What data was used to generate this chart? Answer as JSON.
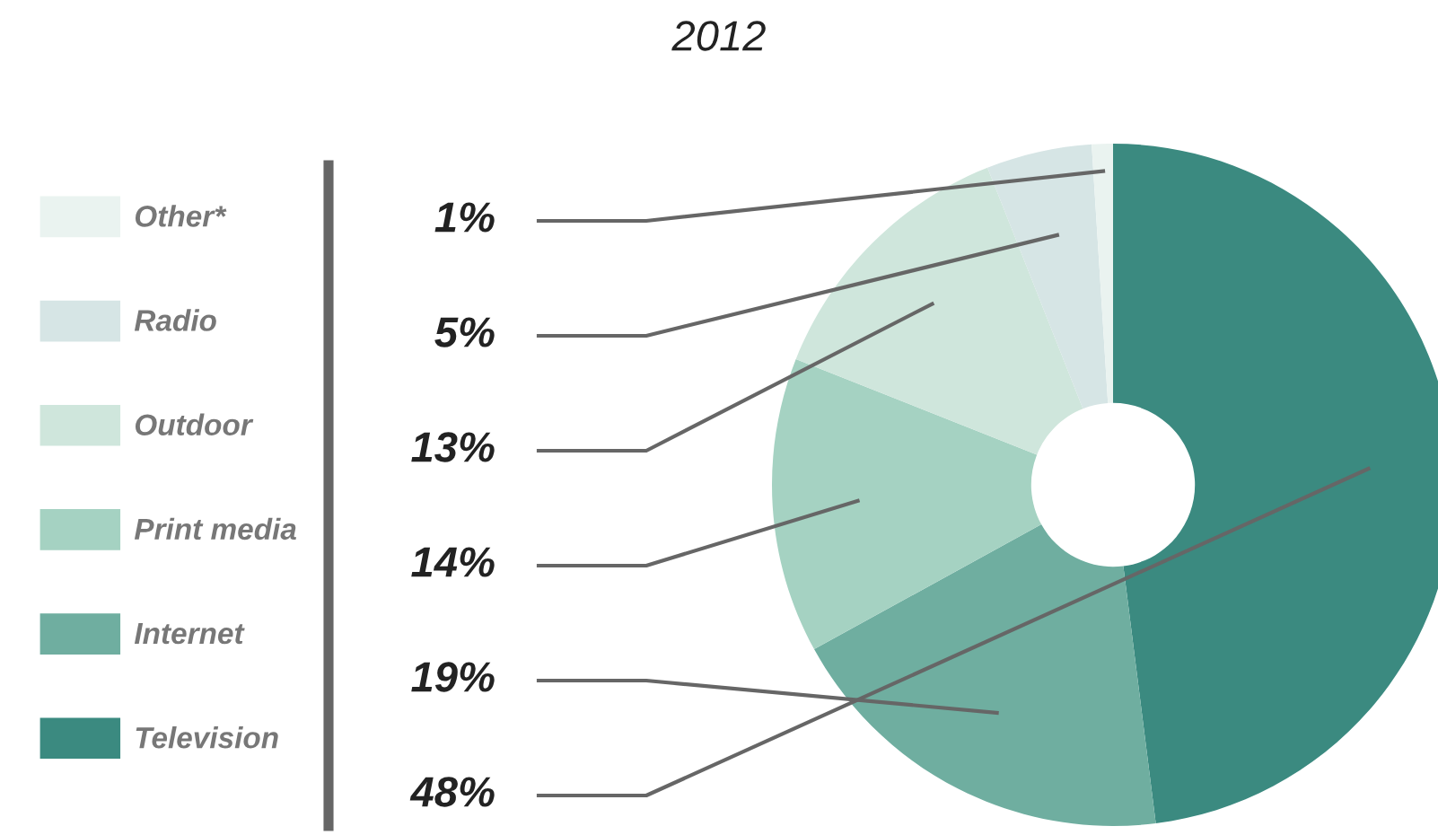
{
  "chart_data": {
    "type": "donut",
    "title": "2012",
    "categories": [
      "Television",
      "Internet",
      "Print media",
      "Outdoor",
      "Radio",
      "Other*"
    ],
    "values": [
      48,
      19,
      14,
      13,
      5,
      1
    ],
    "colors": [
      "#3b8a80",
      "#6faea0",
      "#a5d2c2",
      "#cfe6dc",
      "#d6e5e5",
      "#eaf3f0"
    ],
    "value_labels": [
      "48%",
      "19%",
      "14%",
      "13%",
      "5%",
      "1%"
    ],
    "legend": "left"
  }
}
